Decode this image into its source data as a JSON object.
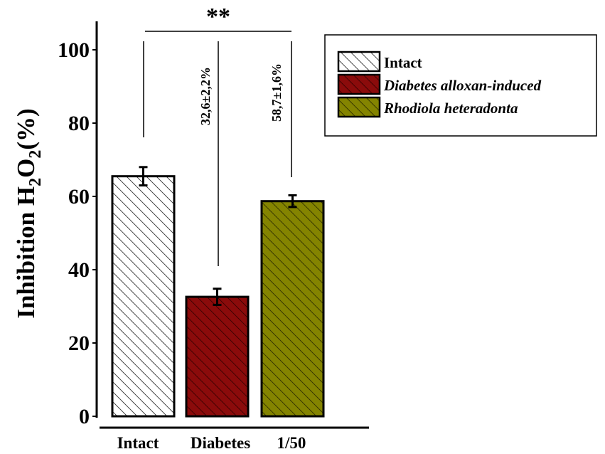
{
  "chart_data": {
    "type": "bar",
    "title": "",
    "xlabel": "",
    "ylabel": {
      "prefix": "Inhibition H",
      "sub1": "2",
      "mid": "O",
      "sub2": "2",
      "suffix": "(%)"
    },
    "ylim": [
      0,
      105
    ],
    "yticks": [
      0,
      20,
      40,
      60,
      80,
      100
    ],
    "grid": false,
    "categories": [
      "Intact",
      "Diabetes",
      "1/50"
    ],
    "values": [
      65.5,
      32.6,
      58.7
    ],
    "errors": [
      2.5,
      2.2,
      1.6
    ],
    "colors": [
      "#ffffff",
      "#8b0b0b",
      "#848400"
    ],
    "hatch": "diagonal",
    "legend": {
      "placement": "top-right",
      "entries": [
        {
          "label": "Intact",
          "color": "#ffffff",
          "italic": false
        },
        {
          "label": "Diabetes alloxan-induced",
          "color": "#8b0b0b",
          "italic": true
        },
        {
          "label": "Rhodiola heteradonta",
          "color": "#848400",
          "italic": true
        }
      ]
    },
    "annotations": {
      "significance": "**",
      "diabetes_label": "32,6±2,2%",
      "rhodiola_label": "58,7±1,6%"
    }
  }
}
